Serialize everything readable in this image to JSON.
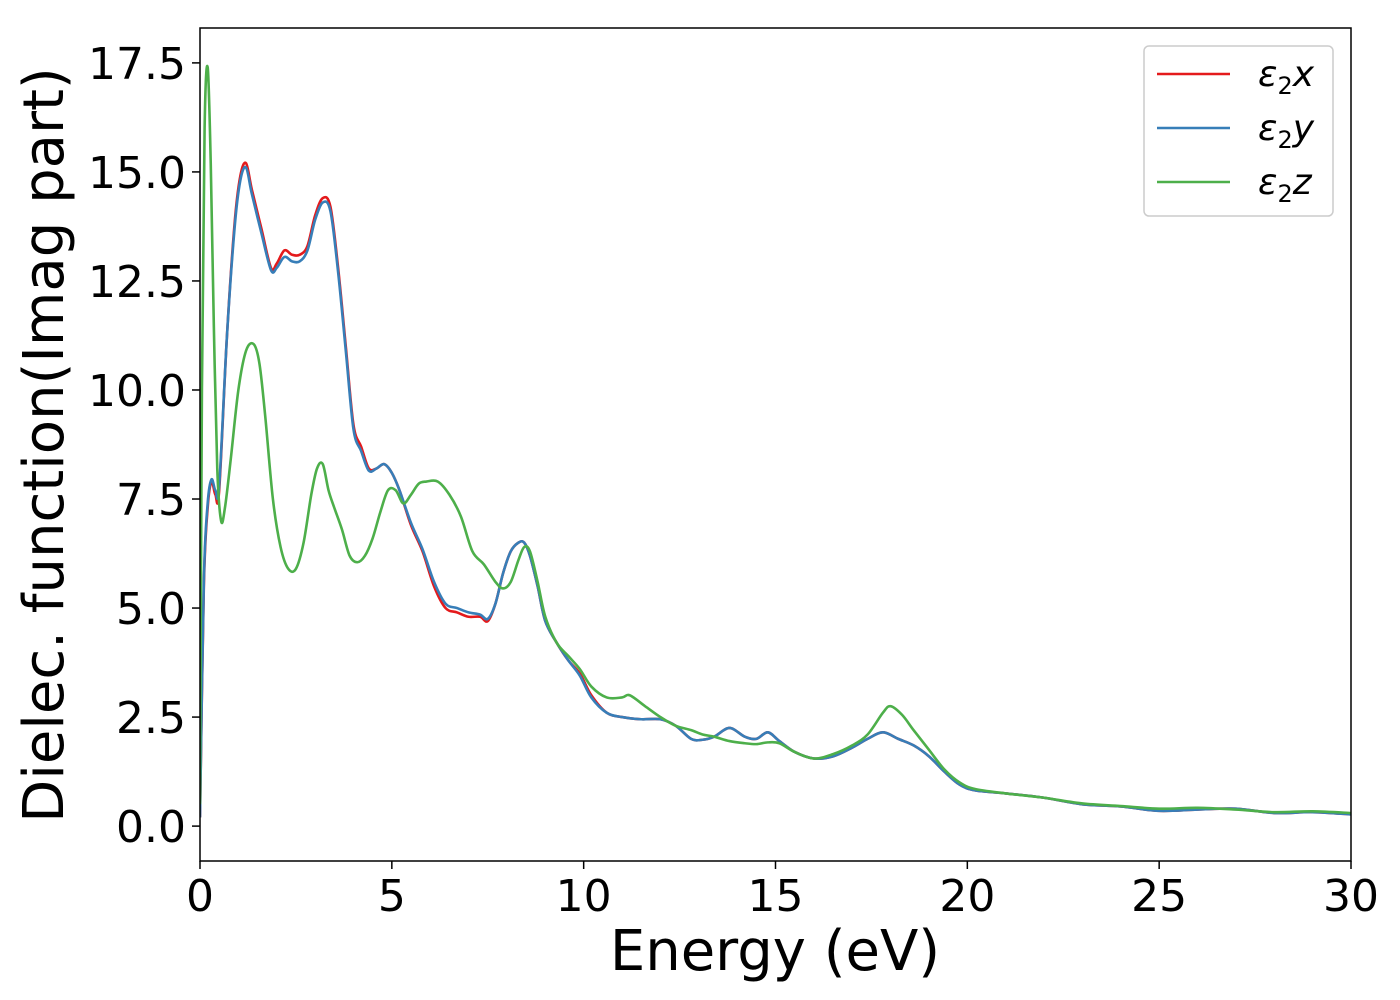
{
  "chart_data": {
    "type": "line",
    "title": "",
    "xlabel": "Energy (eV)",
    "ylabel": "Dielec. function(Imag part)",
    "xlim": [
      0,
      30
    ],
    "ylim": [
      -0.8,
      18.3
    ],
    "xticks": [
      0,
      5,
      10,
      15,
      20,
      25,
      30
    ],
    "yticks": [
      0.0,
      2.5,
      5.0,
      7.5,
      10.0,
      12.5,
      15.0,
      17.5
    ],
    "xtick_labels": [
      "0",
      "5",
      "10",
      "15",
      "20",
      "25",
      "30"
    ],
    "ytick_labels": [
      "0.0",
      "2.5",
      "5.0",
      "7.5",
      "10.0",
      "12.5",
      "15.0",
      "17.5"
    ],
    "grid": false,
    "legend_position": "top-right",
    "series": [
      {
        "name": "ε2x",
        "legend_base": "ε",
        "legend_sub": "2",
        "legend_var": "x",
        "color": "#e41a1c",
        "x": [
          0,
          0.1,
          0.2,
          0.3,
          0.4,
          0.5,
          0.7,
          0.9,
          1.05,
          1.2,
          1.35,
          1.6,
          1.85,
          2.0,
          2.2,
          2.4,
          2.6,
          2.8,
          3.0,
          3.2,
          3.4,
          3.6,
          3.8,
          4.0,
          4.2,
          4.4,
          4.6,
          4.8,
          5.0,
          5.2,
          5.5,
          5.8,
          6.1,
          6.4,
          6.7,
          7.0,
          7.3,
          7.5,
          7.7,
          7.9,
          8.1,
          8.3,
          8.45,
          8.6,
          8.8,
          9.0,
          9.3,
          9.6,
          9.9,
          10.2,
          10.6,
          11.0,
          11.5,
          12.0,
          12.4,
          12.8,
          13.1,
          13.4,
          13.8,
          14.2,
          14.5,
          14.8,
          15.1,
          15.5,
          16.0,
          16.5,
          17.0,
          17.4,
          17.8,
          18.2,
          18.6,
          19.0,
          19.4,
          19.8,
          20.2,
          21.0,
          22.0,
          23.0,
          24.0,
          25.0,
          26.0,
          27.0,
          28.0,
          29.0,
          30.0
        ],
        "y": [
          0.2,
          5.5,
          7.3,
          7.9,
          7.6,
          7.7,
          11.2,
          13.8,
          14.9,
          15.2,
          14.6,
          13.7,
          12.8,
          12.9,
          13.2,
          13.1,
          13.1,
          13.3,
          14.0,
          14.4,
          14.2,
          12.8,
          11.0,
          9.2,
          8.7,
          8.2,
          8.2,
          8.3,
          8.1,
          7.7,
          6.9,
          6.3,
          5.5,
          5.0,
          4.9,
          4.8,
          4.8,
          4.7,
          5.1,
          5.8,
          6.3,
          6.5,
          6.5,
          6.2,
          5.5,
          4.7,
          4.2,
          3.8,
          3.5,
          3.0,
          2.6,
          2.5,
          2.45,
          2.45,
          2.3,
          2.0,
          1.98,
          2.05,
          2.25,
          2.05,
          2.0,
          2.15,
          1.95,
          1.7,
          1.55,
          1.6,
          1.8,
          2.0,
          2.15,
          2.0,
          1.85,
          1.6,
          1.25,
          0.95,
          0.82,
          0.75,
          0.65,
          0.5,
          0.45,
          0.35,
          0.38,
          0.4,
          0.3,
          0.32,
          0.27
        ]
      },
      {
        "name": "ε2y",
        "legend_base": "ε",
        "legend_sub": "2",
        "legend_var": "y",
        "color": "#377eb8",
        "x": [
          0,
          0.1,
          0.2,
          0.3,
          0.4,
          0.5,
          0.7,
          0.9,
          1.05,
          1.2,
          1.35,
          1.6,
          1.85,
          2.0,
          2.2,
          2.4,
          2.6,
          2.8,
          3.0,
          3.2,
          3.4,
          3.6,
          3.8,
          4.0,
          4.2,
          4.4,
          4.6,
          4.8,
          5.0,
          5.2,
          5.5,
          5.8,
          6.1,
          6.4,
          6.7,
          7.0,
          7.3,
          7.5,
          7.7,
          7.9,
          8.1,
          8.3,
          8.45,
          8.6,
          8.8,
          9.0,
          9.3,
          9.6,
          9.9,
          10.2,
          10.6,
          11.0,
          11.5,
          12.0,
          12.4,
          12.8,
          13.1,
          13.4,
          13.8,
          14.2,
          14.5,
          14.8,
          15.1,
          15.5,
          16.0,
          16.5,
          17.0,
          17.4,
          17.8,
          18.2,
          18.6,
          19.0,
          19.4,
          19.8,
          20.2,
          21.0,
          22.0,
          23.0,
          24.0,
          25.0,
          26.0,
          27.0,
          28.0,
          29.0,
          30.0
        ],
        "y": [
          0.2,
          5.6,
          7.4,
          7.95,
          7.7,
          7.8,
          11.2,
          13.7,
          14.8,
          15.1,
          14.5,
          13.6,
          12.75,
          12.8,
          13.05,
          12.95,
          12.95,
          13.2,
          13.9,
          14.3,
          14.1,
          12.7,
          10.9,
          9.1,
          8.6,
          8.15,
          8.2,
          8.3,
          8.1,
          7.7,
          6.95,
          6.35,
          5.6,
          5.1,
          5.0,
          4.9,
          4.85,
          4.75,
          5.1,
          5.8,
          6.3,
          6.5,
          6.5,
          6.2,
          5.5,
          4.7,
          4.2,
          3.8,
          3.45,
          2.95,
          2.6,
          2.5,
          2.45,
          2.45,
          2.3,
          2.0,
          1.98,
          2.05,
          2.25,
          2.05,
          2.0,
          2.15,
          1.95,
          1.7,
          1.55,
          1.6,
          1.8,
          2.0,
          2.15,
          2.0,
          1.85,
          1.6,
          1.25,
          0.95,
          0.82,
          0.75,
          0.65,
          0.5,
          0.45,
          0.35,
          0.38,
          0.4,
          0.3,
          0.32,
          0.27
        ]
      },
      {
        "name": "ε2z",
        "legend_base": "ε",
        "legend_sub": "2",
        "legend_var": "z",
        "color": "#4daf4a",
        "x": [
          0,
          0.05,
          0.12,
          0.2,
          0.28,
          0.36,
          0.45,
          0.55,
          0.65,
          0.8,
          1.0,
          1.2,
          1.4,
          1.55,
          1.7,
          1.9,
          2.1,
          2.3,
          2.5,
          2.7,
          2.9,
          3.05,
          3.2,
          3.35,
          3.5,
          3.7,
          3.9,
          4.1,
          4.3,
          4.5,
          4.7,
          4.9,
          5.1,
          5.3,
          5.5,
          5.7,
          5.9,
          6.2,
          6.5,
          6.8,
          7.1,
          7.4,
          7.7,
          7.9,
          8.1,
          8.3,
          8.45,
          8.6,
          8.8,
          9.0,
          9.3,
          9.6,
          9.9,
          10.2,
          10.6,
          11.0,
          11.2,
          11.6,
          12.0,
          12.4,
          12.8,
          13.1,
          13.4,
          13.8,
          14.2,
          14.5,
          14.8,
          15.1,
          15.5,
          16.0,
          16.5,
          17.0,
          17.4,
          17.8,
          18.0,
          18.3,
          18.6,
          19.0,
          19.4,
          19.8,
          20.2,
          21.0,
          22.0,
          23.0,
          24.0,
          25.0,
          26.0,
          27.0,
          28.0,
          29.0,
          30.0
        ],
        "y": [
          0.5,
          10.0,
          16.0,
          17.4,
          15.2,
          11.5,
          8.2,
          7.0,
          7.3,
          8.4,
          10.0,
          10.9,
          11.05,
          10.6,
          9.4,
          7.5,
          6.4,
          5.9,
          5.9,
          6.5,
          7.6,
          8.2,
          8.3,
          7.7,
          7.3,
          6.8,
          6.2,
          6.05,
          6.2,
          6.6,
          7.2,
          7.7,
          7.7,
          7.4,
          7.6,
          7.85,
          7.9,
          7.9,
          7.6,
          7.1,
          6.3,
          6.0,
          5.6,
          5.45,
          5.6,
          6.1,
          6.4,
          6.3,
          5.6,
          4.8,
          4.2,
          3.9,
          3.6,
          3.2,
          2.95,
          2.95,
          3.0,
          2.75,
          2.5,
          2.3,
          2.2,
          2.1,
          2.05,
          1.95,
          1.9,
          1.88,
          1.92,
          1.9,
          1.7,
          1.55,
          1.65,
          1.85,
          2.1,
          2.6,
          2.75,
          2.55,
          2.2,
          1.75,
          1.3,
          1.0,
          0.85,
          0.75,
          0.65,
          0.52,
          0.46,
          0.4,
          0.42,
          0.38,
          0.32,
          0.34,
          0.3
        ]
      }
    ]
  }
}
